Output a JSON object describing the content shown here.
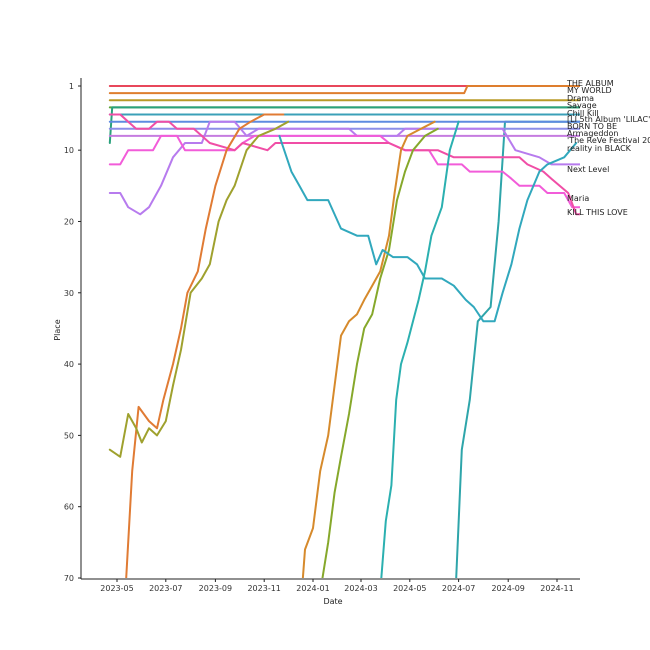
{
  "chart_data": {
    "type": "line",
    "xlabel": "Date",
    "ylabel": "Place",
    "y_inverted": true,
    "ylim": [
      1,
      70
    ],
    "xlim": [
      "2023-04-15",
      "2024-11-30"
    ],
    "x_ticks": [
      "2023-05",
      "2023-07",
      "2023-09",
      "2023-11",
      "2024-01",
      "2024-03",
      "2024-05",
      "2024-07",
      "2024-09",
      "2024-11"
    ],
    "y_ticks": [
      1,
      10,
      20,
      30,
      40,
      50,
      60,
      70
    ],
    "grid": false,
    "series": [
      {
        "name": "THE ALBUM",
        "color": "#e8475b",
        "points": [
          [
            "2023-04-22",
            1
          ],
          [
            "2024-11-30",
            1
          ]
        ]
      },
      {
        "name": "MY WORLD",
        "color": "#de7e2e",
        "points": [
          [
            "2023-04-22",
            2
          ],
          [
            "2024-07-08",
            2
          ],
          [
            "2024-07-12",
            1
          ],
          [
            "2024-11-30",
            1
          ]
        ]
      },
      {
        "name": "Drama",
        "color": "#b89a26",
        "points": [
          [
            "2023-04-22",
            3
          ],
          [
            "2024-11-30",
            3
          ]
        ]
      },
      {
        "name": "Savage",
        "color": "#5aa539",
        "points": [
          [
            "2023-04-22",
            4
          ],
          [
            "2024-11-30",
            4
          ]
        ]
      },
      {
        "name": "Chill Kill",
        "color": "#2aa17c",
        "points": [
          [
            "2023-04-22",
            9
          ],
          [
            "2023-04-25",
            4
          ],
          [
            "2024-11-30",
            4
          ]
        ]
      },
      {
        "name": "[LI 5th Album 'LILAC']",
        "color": "#3ba0b8",
        "points": [
          [
            "2023-04-22",
            5
          ],
          [
            "2024-11-30",
            5
          ]
        ]
      },
      {
        "name": "BORN TO BE",
        "color": "#2ea5aa",
        "points": [
          [
            "2024-06-28",
            70
          ],
          [
            "2024-07-05",
            52
          ],
          [
            "2024-07-15",
            45
          ],
          [
            "2024-07-25",
            34
          ],
          [
            "2024-08-10",
            32
          ],
          [
            "2024-08-20",
            20
          ],
          [
            "2024-08-28",
            6
          ],
          [
            "2024-11-30",
            6
          ]
        ]
      },
      {
        "name": "Armageddon",
        "color": "#5e8be0",
        "points": [
          [
            "2023-04-22",
            6
          ],
          [
            "2024-11-30",
            6
          ]
        ]
      },
      {
        "name": "'The ReVe Festival 2022 - Feel My Rhythm'",
        "color": "#8c8ee8",
        "points": [
          [
            "2023-04-22",
            7
          ],
          [
            "2024-11-30",
            7
          ]
        ]
      },
      {
        "name": "reality in BLACK",
        "color": "#c57ce0",
        "points": [
          [
            "2023-04-22",
            8
          ],
          [
            "2024-11-30",
            8
          ]
        ]
      },
      {
        "name": "Next Level",
        "color": "#b77bee",
        "points": [
          [
            "2023-04-22",
            16
          ],
          [
            "2023-05-05",
            16
          ],
          [
            "2023-05-15",
            18
          ],
          [
            "2023-05-30",
            19
          ],
          [
            "2023-06-10",
            18
          ],
          [
            "2023-06-25",
            15
          ],
          [
            "2023-07-10",
            11
          ],
          [
            "2023-07-25",
            9
          ],
          [
            "2023-08-15",
            9
          ],
          [
            "2023-08-25",
            6
          ],
          [
            "2023-09-25",
            6
          ],
          [
            "2023-10-10",
            8
          ],
          [
            "2023-10-25",
            7
          ],
          [
            "2024-02-15",
            7
          ],
          [
            "2024-02-25",
            8
          ],
          [
            "2024-04-15",
            8
          ],
          [
            "2024-04-25",
            7
          ],
          [
            "2024-08-25",
            7
          ],
          [
            "2024-09-10",
            10
          ],
          [
            "2024-10-10",
            11
          ],
          [
            "2024-10-25",
            12
          ],
          [
            "2024-11-30",
            12
          ]
        ]
      },
      {
        "name": "Maria",
        "color": "#f25cd9",
        "points": [
          [
            "2023-04-22",
            12
          ],
          [
            "2023-05-05",
            12
          ],
          [
            "2023-05-15",
            10
          ],
          [
            "2023-06-15",
            10
          ],
          [
            "2023-06-25",
            8
          ],
          [
            "2023-07-15",
            8
          ],
          [
            "2023-07-25",
            10
          ],
          [
            "2023-09-25",
            10
          ],
          [
            "2023-10-05",
            9
          ],
          [
            "2023-10-20",
            8
          ],
          [
            "2023-11-25",
            8
          ],
          [
            "2024-03-25",
            8
          ],
          [
            "2024-04-05",
            9
          ],
          [
            "2024-04-25",
            10
          ],
          [
            "2024-05-25",
            10
          ],
          [
            "2024-06-05",
            12
          ],
          [
            "2024-07-05",
            12
          ],
          [
            "2024-07-15",
            13
          ],
          [
            "2024-08-25",
            13
          ],
          [
            "2024-09-05",
            14
          ],
          [
            "2024-09-15",
            15
          ],
          [
            "2024-10-10",
            15
          ],
          [
            "2024-10-20",
            16
          ],
          [
            "2024-11-10",
            16
          ],
          [
            "2024-11-20",
            18
          ],
          [
            "2024-11-30",
            18
          ]
        ]
      },
      {
        "name": "KILL THIS LOVE",
        "color": "#f04ea6",
        "points": [
          [
            "2023-04-22",
            5
          ],
          [
            "2023-05-05",
            5
          ],
          [
            "2023-05-15",
            6
          ],
          [
            "2023-05-25",
            7
          ],
          [
            "2023-06-10",
            7
          ],
          [
            "2023-06-20",
            6
          ],
          [
            "2023-07-05",
            6
          ],
          [
            "2023-07-15",
            7
          ],
          [
            "2023-08-05",
            7
          ],
          [
            "2023-08-25",
            9
          ],
          [
            "2023-09-25",
            10
          ],
          [
            "2023-10-05",
            9
          ],
          [
            "2023-11-05",
            10
          ],
          [
            "2023-11-15",
            9
          ],
          [
            "2024-01-01",
            9
          ],
          [
            "2024-04-05",
            9
          ],
          [
            "2024-04-25",
            10
          ],
          [
            "2024-06-05",
            10
          ],
          [
            "2024-06-25",
            11
          ],
          [
            "2024-09-15",
            11
          ],
          [
            "2024-09-25",
            12
          ],
          [
            "2024-10-15",
            13
          ],
          [
            "2024-10-25",
            14
          ],
          [
            "2024-11-15",
            16
          ],
          [
            "2024-11-25",
            19
          ],
          [
            "2024-11-30",
            19
          ]
        ]
      },
      {
        "name": "",
        "color": "#e07b34",
        "points": [
          [
            "2023-05-10",
            75
          ],
          [
            "2023-05-14",
            67
          ],
          [
            "2023-05-20",
            55
          ],
          [
            "2023-05-28",
            46
          ],
          [
            "2023-06-10",
            48
          ],
          [
            "2023-06-20",
            49
          ],
          [
            "2023-06-28",
            45
          ],
          [
            "2023-07-10",
            40
          ],
          [
            "2023-07-20",
            35
          ],
          [
            "2023-07-28",
            30
          ],
          [
            "2023-08-10",
            27
          ],
          [
            "2023-08-20",
            21
          ],
          [
            "2023-09-01",
            15
          ],
          [
            "2023-09-15",
            10
          ],
          [
            "2023-10-01",
            7
          ],
          [
            "2023-10-15",
            6
          ],
          [
            "2023-11-01",
            5
          ],
          [
            "2023-11-25",
            5
          ]
        ]
      },
      {
        "name": "",
        "color": "#9fa12e",
        "points": [
          [
            "2023-04-22",
            52
          ],
          [
            "2023-05-05",
            53
          ],
          [
            "2023-05-15",
            47
          ],
          [
            "2023-05-25",
            49
          ],
          [
            "2023-06-01",
            51
          ],
          [
            "2023-06-10",
            49
          ],
          [
            "2023-06-20",
            50
          ],
          [
            "2023-07-01",
            48
          ],
          [
            "2023-07-10",
            43
          ],
          [
            "2023-07-20",
            38
          ],
          [
            "2023-08-01",
            30
          ],
          [
            "2023-08-15",
            28
          ],
          [
            "2023-08-25",
            26
          ],
          [
            "2023-09-05",
            20
          ],
          [
            "2023-09-15",
            17
          ],
          [
            "2023-09-25",
            15
          ],
          [
            "2023-10-10",
            10
          ],
          [
            "2023-10-25",
            8
          ],
          [
            "2023-11-15",
            7
          ],
          [
            "2023-12-01",
            6
          ]
        ]
      },
      {
        "name": "",
        "color": "#d68a2c",
        "points": [
          [
            "2023-12-18",
            72
          ],
          [
            "2023-12-22",
            66
          ],
          [
            "2024-01-01",
            63
          ],
          [
            "2024-01-10",
            55
          ],
          [
            "2024-01-20",
            50
          ],
          [
            "2024-01-28",
            43
          ],
          [
            "2024-02-05",
            36
          ],
          [
            "2024-02-15",
            34
          ],
          [
            "2024-02-25",
            33
          ],
          [
            "2024-03-05",
            31
          ],
          [
            "2024-03-15",
            29
          ],
          [
            "2024-03-25",
            27
          ],
          [
            "2024-04-05",
            22
          ],
          [
            "2024-04-12",
            16
          ],
          [
            "2024-04-20",
            10
          ],
          [
            "2024-04-28",
            8
          ],
          [
            "2024-05-15",
            7
          ],
          [
            "2024-06-01",
            6
          ]
        ]
      },
      {
        "name": "",
        "color": "#86a82b",
        "points": [
          [
            "2024-01-10",
            72
          ],
          [
            "2024-01-20",
            65
          ],
          [
            "2024-01-28",
            58
          ],
          [
            "2024-02-05",
            53
          ],
          [
            "2024-02-15",
            47
          ],
          [
            "2024-02-25",
            40
          ],
          [
            "2024-03-05",
            35
          ],
          [
            "2024-03-15",
            33
          ],
          [
            "2024-03-25",
            28
          ],
          [
            "2024-04-05",
            24
          ],
          [
            "2024-04-15",
            17
          ],
          [
            "2024-04-25",
            13
          ],
          [
            "2024-05-05",
            10
          ],
          [
            "2024-05-20",
            8
          ],
          [
            "2024-06-05",
            7
          ]
        ]
      },
      {
        "name": "",
        "color": "#31a8bd",
        "points": [
          [
            "2023-11-20",
            8
          ],
          [
            "2023-12-05",
            13
          ],
          [
            "2023-12-15",
            15
          ],
          [
            "2023-12-25",
            17
          ],
          [
            "2024-01-20",
            17
          ],
          [
            "2024-02-05",
            21
          ],
          [
            "2024-02-25",
            22
          ],
          [
            "2024-03-10",
            22
          ],
          [
            "2024-03-20",
            26
          ],
          [
            "2024-03-28",
            24
          ],
          [
            "2024-04-10",
            25
          ],
          [
            "2024-04-28",
            25
          ],
          [
            "2024-05-10",
            26
          ],
          [
            "2024-05-20",
            28
          ],
          [
            "2024-06-10",
            28
          ],
          [
            "2024-06-25",
            29
          ],
          [
            "2024-07-10",
            31
          ],
          [
            "2024-07-20",
            32
          ],
          [
            "2024-08-01",
            34
          ],
          [
            "2024-08-15",
            34
          ],
          [
            "2024-08-25",
            30
          ],
          [
            "2024-09-05",
            26
          ],
          [
            "2024-09-15",
            21
          ],
          [
            "2024-09-25",
            17
          ],
          [
            "2024-10-10",
            13
          ],
          [
            "2024-10-20",
            12
          ],
          [
            "2024-11-10",
            11
          ],
          [
            "2024-11-25",
            9
          ]
        ]
      },
      {
        "name": "",
        "color": "#2bb0b0",
        "points": [
          [
            "2024-03-25",
            72
          ],
          [
            "2024-04-01",
            62
          ],
          [
            "2024-04-08",
            57
          ],
          [
            "2024-04-14",
            45
          ],
          [
            "2024-04-20",
            40
          ],
          [
            "2024-04-28",
            37
          ],
          [
            "2024-05-05",
            34
          ],
          [
            "2024-05-12",
            31
          ],
          [
            "2024-05-20",
            27
          ],
          [
            "2024-05-28",
            22
          ],
          [
            "2024-06-10",
            18
          ],
          [
            "2024-06-20",
            10
          ],
          [
            "2024-07-01",
            6
          ]
        ]
      }
    ]
  }
}
